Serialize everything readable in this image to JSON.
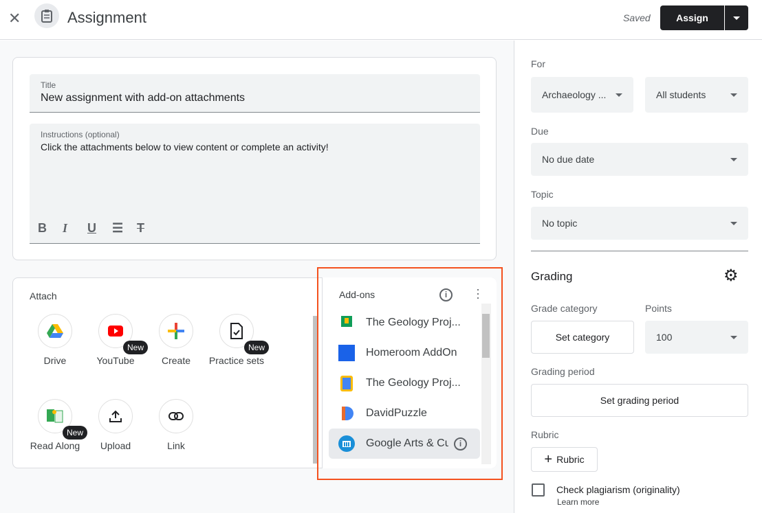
{
  "header": {
    "title": "Assignment",
    "status": "Saved",
    "assign_label": "Assign"
  },
  "form": {
    "title_label": "Title",
    "title_value": "New assignment with add-on attachments",
    "instructions_label": "Instructions (optional)",
    "instructions_value": "Click the attachments below to view content or complete an activity!"
  },
  "attach": {
    "label": "Attach",
    "items": [
      {
        "label": "Drive",
        "icon": "drive-icon"
      },
      {
        "label": "YouTube",
        "icon": "youtube-icon",
        "badge": "New"
      },
      {
        "label": "Create",
        "icon": "plus-icon"
      },
      {
        "label": "Practice sets",
        "icon": "practice-sets-icon",
        "badge": "New"
      },
      {
        "label": "Read Along",
        "icon": "read-along-icon",
        "badge": "New"
      },
      {
        "label": "Upload",
        "icon": "upload-icon"
      },
      {
        "label": "Link",
        "icon": "link-icon"
      }
    ]
  },
  "addons": {
    "title": "Add-ons",
    "items": [
      {
        "label": "The Geology Proj..."
      },
      {
        "label": "Homeroom AddOn"
      },
      {
        "label": "The Geology Proj..."
      },
      {
        "label": "DavidPuzzle"
      },
      {
        "label": "Google Arts & Cu"
      }
    ]
  },
  "sidebar": {
    "for_label": "For",
    "class_value": "Archaeology ...",
    "students_value": "All students",
    "due_label": "Due",
    "due_value": "No due date",
    "topic_label": "Topic",
    "topic_value": "No topic",
    "grading_title": "Grading",
    "grade_category_label": "Grade category",
    "set_category": "Set category",
    "points_label": "Points",
    "points_value": "100",
    "grading_period_label": "Grading period",
    "set_grading_period": "Set grading period",
    "rubric_label": "Rubric",
    "rubric_button": "Rubric",
    "plagiarism_label": "Check plagiarism (originality)",
    "learn_more": "Learn more"
  },
  "colors": {
    "highlight": "#f4511e",
    "assign_bg": "#202124"
  }
}
